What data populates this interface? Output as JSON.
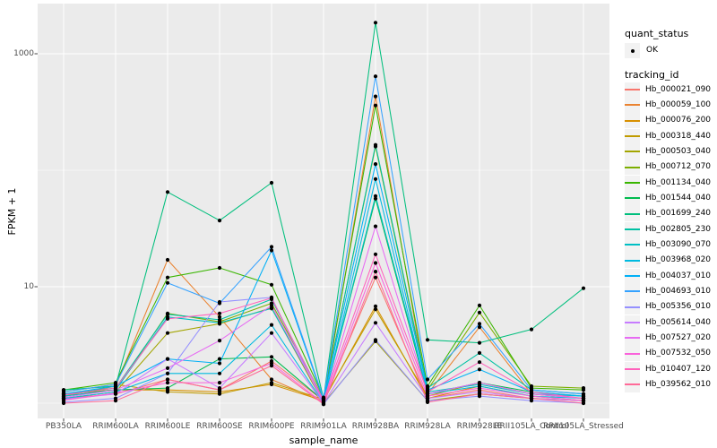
{
  "figure": {
    "y_axis": {
      "title": "FPKM + 1",
      "tick_labels": [
        "1000",
        "10"
      ],
      "tick_values": [
        1000,
        10
      ]
    },
    "x_axis": {
      "title": "sample_name"
    },
    "legend": {
      "quant": {
        "title": "quant_status",
        "ok_label": "OK"
      },
      "tracking": {
        "title": "tracking_id"
      }
    },
    "colors": {
      "panel_bg": "#EBEBEB",
      "grid": "#FFFFFF",
      "tick_text": "#4D4D4D",
      "axis_tick": "#333333",
      "point": "#000000",
      "legend_key_bg": "#F2F2F2"
    }
  },
  "chart_data": {
    "type": "line",
    "title": "",
    "xlabel": "sample_name",
    "ylabel": "FPKM + 1",
    "y_scale": "log10",
    "ylim": [
      0.74,
      2500
    ],
    "y_ticks": [
      1000,
      10
    ],
    "y_minor_gridlines": [
      100,
      1
    ],
    "grid": true,
    "legend_position": "right",
    "point_marker": {
      "shape": "dot",
      "color": "#000000",
      "legend_label": "OK",
      "legend_title": "quant_status"
    },
    "categories": [
      "PB350LA",
      "RRIM600LA",
      "RRIM600LE",
      "RRIM600SE",
      "RRIM600PE",
      "RRIM901LA",
      "RRIM928BA",
      "RRIM928LA",
      "RRIM928LE",
      "RRII105LA_Control",
      "RRII105LA_Stressed"
    ],
    "series": [
      {
        "name": "Hb_000021_090",
        "color": "#F8766D",
        "values": [
          1.1,
          1.2,
          1.6,
          1.3,
          2.3,
          1.05,
          12.0,
          1.1,
          1.3,
          1.1,
          1.05
        ]
      },
      {
        "name": "Hb_000059_100",
        "color": "#EA8331",
        "values": [
          1.15,
          1.4,
          17.0,
          5.5,
          1.6,
          1.02,
          430,
          1.2,
          4.5,
          1.2,
          1.1
        ]
      },
      {
        "name": "Hb_000076_200",
        "color": "#D89000",
        "values": [
          1.2,
          1.3,
          1.3,
          1.25,
          1.45,
          1.05,
          6.8,
          1.1,
          1.4,
          1.15,
          1.05
        ]
      },
      {
        "name": "Hb_000318_440",
        "color": "#C09B00",
        "values": [
          1.25,
          1.45,
          1.25,
          1.2,
          1.5,
          1.08,
          6.4,
          1.15,
          1.5,
          1.2,
          1.1
        ]
      },
      {
        "name": "Hb_000503_040",
        "color": "#A3A500",
        "values": [
          1.1,
          1.25,
          4.0,
          4.8,
          6.6,
          1.0,
          3.4,
          1.05,
          1.2,
          1.1,
          1.05
        ]
      },
      {
        "name": "Hb_000712_070",
        "color": "#7CAE00",
        "values": [
          1.2,
          1.3,
          5.9,
          5.0,
          7.2,
          1.1,
          160,
          1.3,
          6.0,
          1.4,
          1.35
        ]
      },
      {
        "name": "Hb_001134_040",
        "color": "#39B600",
        "values": [
          1.3,
          1.5,
          12.0,
          14.5,
          10.4,
          1.12,
          360,
          1.4,
          6.9,
          1.35,
          1.3
        ]
      },
      {
        "name": "Hb_001544_040",
        "color": "#00BB4E",
        "values": [
          1.15,
          1.3,
          1.35,
          2.4,
          2.5,
          1.05,
          57.0,
          1.2,
          1.5,
          1.25,
          1.15
        ]
      },
      {
        "name": "Hb_001699_240",
        "color": "#00BF7D",
        "values": [
          1.3,
          1.4,
          65.0,
          37.0,
          78.0,
          1.1,
          1850,
          3.5,
          3.3,
          4.3,
          9.7
        ]
      },
      {
        "name": "Hb_002805_230",
        "color": "#00C1A3",
        "values": [
          1.2,
          1.35,
          5.8,
          5.2,
          7.8,
          1.08,
          165,
          1.35,
          2.7,
          1.3,
          1.2
        ]
      },
      {
        "name": "Hb_003090_070",
        "color": "#00BFC4",
        "values": [
          1.15,
          1.3,
          5.5,
          4.9,
          6.5,
          1.05,
          60.0,
          1.25,
          1.45,
          1.2,
          1.15
        ]
      },
      {
        "name": "Hb_003968_020",
        "color": "#00BAE0",
        "values": [
          1.1,
          1.25,
          1.8,
          1.8,
          4.7,
          1.0,
          84.0,
          1.2,
          1.4,
          1.15,
          1.1
        ]
      },
      {
        "name": "Hb_004037_010",
        "color": "#00B0F6",
        "values": [
          1.2,
          1.4,
          2.4,
          2.2,
          20.5,
          1.08,
          113,
          1.3,
          1.95,
          1.25,
          1.15
        ]
      },
      {
        "name": "Hb_004693_010",
        "color": "#35A2FF",
        "values": [
          1.25,
          1.45,
          10.8,
          7.2,
          22.0,
          1.1,
          640,
          1.6,
          4.8,
          1.3,
          1.2
        ]
      },
      {
        "name": "Hb_005356_010",
        "color": "#9590FF",
        "values": [
          1.02,
          1.1,
          1.8,
          7.4,
          8.1,
          0.98,
          3.5,
          1.05,
          1.15,
          1.05,
          1.0
        ]
      },
      {
        "name": "Hb_005614_040",
        "color": "#C77CFF",
        "values": [
          1.08,
          1.2,
          2.4,
          1.35,
          4.0,
          1.0,
          4.9,
          1.1,
          1.25,
          1.1,
          1.05
        ]
      },
      {
        "name": "Hb_007527_020",
        "color": "#E76BF3",
        "values": [
          1.12,
          1.3,
          2.0,
          3.45,
          6.9,
          1.03,
          33.0,
          1.2,
          1.5,
          1.2,
          1.1
        ]
      },
      {
        "name": "Hb_007532_050",
        "color": "#FA62DB",
        "values": [
          1.06,
          1.22,
          1.5,
          1.5,
          2.2,
          1.0,
          16.0,
          1.15,
          1.35,
          1.15,
          1.05
        ]
      },
      {
        "name": "Hb_010407_120",
        "color": "#FF62BC",
        "values": [
          1.18,
          1.35,
          5.3,
          5.9,
          8.0,
          1.06,
          19.0,
          1.25,
          2.25,
          1.25,
          1.1
        ]
      },
      {
        "name": "Hb_039562_010",
        "color": "#FF6A98",
        "values": [
          1.0,
          1.05,
          1.6,
          1.3,
          2.1,
          0.98,
          13.5,
          1.02,
          1.2,
          1.1,
          1.0
        ]
      }
    ]
  }
}
